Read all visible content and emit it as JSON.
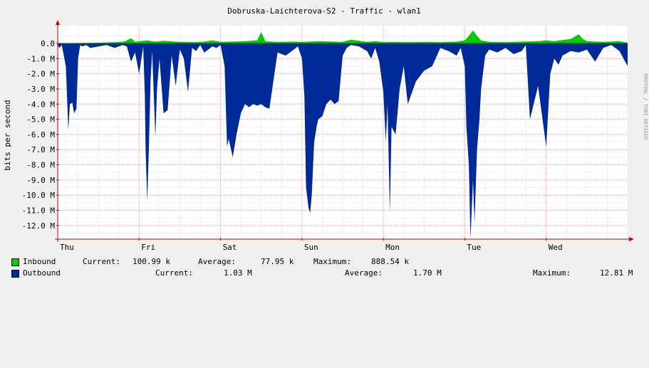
{
  "chart_data": {
    "type": "area",
    "title": "Dobruska-Laichterova-S2 - Traffic - wlan1",
    "ylabel": "bits per second",
    "watermark": "RRDTOOL / TOBI OETIKER",
    "ylim": [
      -12.9,
      0.8
    ],
    "y_ticks": [
      0,
      -1,
      -2,
      -3,
      -4,
      -5,
      -6,
      -7,
      -8,
      -9,
      -10,
      -11,
      -12
    ],
    "y_tick_labels": [
      "0.0",
      "-1.0 M",
      "-2.0 M",
      "-3.0 M",
      "-4.0 M",
      "-5.0 M",
      "-6.0 M",
      "-7.0 M",
      "-8.0 M",
      "-9.0 M",
      "-10.0 M",
      "-11.0 M",
      "-12.0 M"
    ],
    "x_unit": "days",
    "xlim": [
      0,
      7.0
    ],
    "x_ticks": [
      0,
      1,
      2,
      3,
      4,
      5,
      6
    ],
    "x_tick_labels": [
      "Thu",
      "Fri",
      "Sat",
      "Sun",
      "Mon",
      "Tue",
      "Wed"
    ],
    "grid": true,
    "colors": {
      "inbound": "#00cc00",
      "outbound": "#002a97",
      "grid": "#ff7070",
      "axis": "#cc0000",
      "canvas": "#ffffff",
      "background": "#f0f0f0"
    },
    "series": [
      {
        "name": "Inbound",
        "x": [
          0,
          0.3,
          0.5,
          0.8,
          0.85,
          0.9,
          0.95,
          1.0,
          1.1,
          1.2,
          1.3,
          1.5,
          1.7,
          1.8,
          1.9,
          2.0,
          2.3,
          2.45,
          2.5,
          2.55,
          2.7,
          2.9,
          3.0,
          3.2,
          3.4,
          3.5,
          3.6,
          3.8,
          3.9,
          4.0,
          4.1,
          4.3,
          4.5,
          4.7,
          4.9,
          5.0,
          5.05,
          5.1,
          5.15,
          5.2,
          5.3,
          5.5,
          5.7,
          5.9,
          6.0,
          6.1,
          6.3,
          6.4,
          6.45,
          6.5,
          6.7,
          6.9,
          7.0
        ],
        "values": [
          0.02,
          0.03,
          0.05,
          0.1,
          0.2,
          0.35,
          0.1,
          0.15,
          0.2,
          0.12,
          0.18,
          0.1,
          0.08,
          0.12,
          0.2,
          0.1,
          0.15,
          0.2,
          0.75,
          0.15,
          0.1,
          0.12,
          0.1,
          0.15,
          0.12,
          0.1,
          0.25,
          0.1,
          0.15,
          0.08,
          0.1,
          0.08,
          0.1,
          0.08,
          0.12,
          0.2,
          0.5,
          0.85,
          0.5,
          0.2,
          0.1,
          0.08,
          0.12,
          0.15,
          0.2,
          0.15,
          0.3,
          0.6,
          0.3,
          0.15,
          0.1,
          0.15,
          0.05
        ]
      },
      {
        "name": "Outbound",
        "x": [
          0,
          0.02,
          0.05,
          0.1,
          0.13,
          0.15,
          0.18,
          0.2,
          0.23,
          0.25,
          0.27,
          0.28,
          0.3,
          0.35,
          0.4,
          0.5,
          0.6,
          0.7,
          0.8,
          0.85,
          0.88,
          0.9,
          0.95,
          1.0,
          1.05,
          1.07,
          1.08,
          1.1,
          1.12,
          1.14,
          1.16,
          1.2,
          1.22,
          1.25,
          1.3,
          1.35,
          1.4,
          1.45,
          1.5,
          1.55,
          1.6,
          1.65,
          1.7,
          1.75,
          1.8,
          1.85,
          1.9,
          1.95,
          2.0,
          2.05,
          2.08,
          2.1,
          2.15,
          2.2,
          2.25,
          2.3,
          2.35,
          2.4,
          2.45,
          2.5,
          2.55,
          2.6,
          2.7,
          2.8,
          2.9,
          2.95,
          3.0,
          3.03,
          3.05,
          3.08,
          3.1,
          3.12,
          3.15,
          3.18,
          3.2,
          3.25,
          3.3,
          3.35,
          3.4,
          3.45,
          3.5,
          3.55,
          3.6,
          3.7,
          3.8,
          3.85,
          3.9,
          3.95,
          4.0,
          4.03,
          4.05,
          4.08,
          4.1,
          4.15,
          4.2,
          4.25,
          4.3,
          4.4,
          4.5,
          4.6,
          4.7,
          4.8,
          4.9,
          4.95,
          5.0,
          5.02,
          5.05,
          5.07,
          5.1,
          5.12,
          5.15,
          5.18,
          5.2,
          5.25,
          5.3,
          5.4,
          5.5,
          5.6,
          5.7,
          5.75,
          5.8,
          5.9,
          6.0,
          6.05,
          6.1,
          6.15,
          6.2,
          6.3,
          6.4,
          6.5,
          6.6,
          6.7,
          6.8,
          6.9,
          7.0
        ],
        "values": [
          -0.1,
          -0.3,
          -0.1,
          -1.5,
          -5.7,
          -4.0,
          -3.9,
          -4.6,
          -4.3,
          -1.0,
          -0.3,
          -0.1,
          -0.2,
          -0.1,
          -0.3,
          -0.2,
          -0.1,
          -0.3,
          -0.1,
          -0.2,
          -0.8,
          -1.2,
          -0.6,
          -2.0,
          -0.2,
          -3.4,
          -7.0,
          -10.4,
          -6.9,
          -2.5,
          -0.5,
          -6.2,
          -3.0,
          -1.0,
          -4.6,
          -4.4,
          -0.8,
          -2.8,
          -0.4,
          -1.0,
          -3.2,
          -0.3,
          -0.5,
          -0.1,
          -0.6,
          -0.4,
          -0.2,
          -0.3,
          -0.1,
          -1.5,
          -6.8,
          -6.3,
          -7.5,
          -5.9,
          -4.6,
          -4.0,
          -4.2,
          -4.0,
          -4.1,
          -4.0,
          -4.2,
          -4.3,
          -0.6,
          -0.8,
          -0.4,
          -0.2,
          -1.0,
          -3.5,
          -9.5,
          -10.8,
          -11.2,
          -10.0,
          -6.5,
          -5.5,
          -5.0,
          -4.8,
          -4.0,
          -3.7,
          -4.0,
          -3.8,
          -0.8,
          -0.3,
          -0.1,
          -0.2,
          -0.5,
          -1.0,
          -0.3,
          -1.2,
          -3.2,
          -6.5,
          -4.0,
          -11.2,
          -5.5,
          -6.0,
          -3.0,
          -1.5,
          -4.0,
          -2.5,
          -1.8,
          -1.5,
          -0.3,
          -0.5,
          -0.8,
          -0.3,
          -1.5,
          -5.5,
          -8.0,
          -12.9,
          -9.0,
          -11.8,
          -7.0,
          -5.0,
          -3.0,
          -0.8,
          -0.4,
          -0.6,
          -0.3,
          -0.7,
          -0.5,
          -0.1,
          -5.0,
          -2.8,
          -6.8,
          -2.0,
          -1.0,
          -1.4,
          -0.8,
          -0.5,
          -0.6,
          -0.4,
          -1.2,
          -0.3,
          -0.1,
          -0.5,
          -1.5
        ]
      }
    ]
  },
  "legend": {
    "inbound": {
      "label": "Inbound",
      "current_label": "Current:",
      "current": "100.99 k",
      "average_label": "Average:",
      "average": "77.95 k",
      "maximum_label": "Maximum:",
      "maximum": "888.54 k"
    },
    "outbound": {
      "label": "Outbound",
      "current_label": "Current:",
      "current": "1.03 M",
      "average_label": "Average:",
      "average": "1.70 M",
      "maximum_label": "Maximum:",
      "maximum": "12.81 M"
    }
  }
}
